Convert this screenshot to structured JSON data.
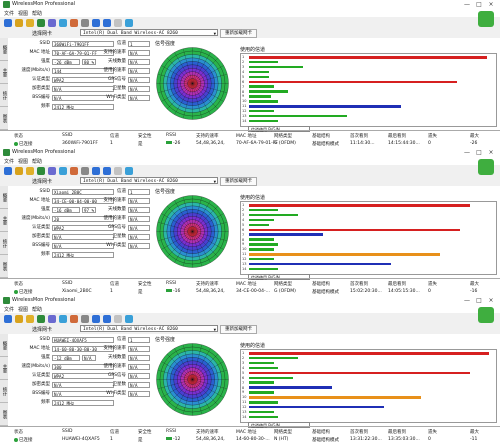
{
  "app": {
    "title": "WirelessMon Professional",
    "menu": [
      "文件",
      "视图",
      "帮助"
    ],
    "controls": [
      "—",
      "□",
      "×"
    ]
  },
  "labels": {
    "adapter": "选择网卡",
    "refresh": "重新加载网卡",
    "ssid": "SSID",
    "channel": "信道",
    "mac": "MAC 地址",
    "rates": "支持的速率",
    "rssi": "强度",
    "antenna": "天线数量",
    "speed": "速度(Mbits/s)",
    "data_rate": "使用的速率",
    "auth": "认证类型",
    "gps": "GPS信号",
    "cipher": "加密类型",
    "satellite": "卫星数",
    "network": "BSS编号",
    "wifi_type": "Wi-Fi类型",
    "frequency": "频率",
    "signal_strength": "信号强度",
    "channel_usage": "使用的信道",
    "usage_option": "信道使用 B/G/N"
  },
  "sidetabs": [
    "概要",
    "主要",
    "统计",
    "图表"
  ],
  "table_headers": [
    "状态",
    "SSID",
    "信道",
    "安全性",
    "RSSI",
    "支持的速率",
    "MAC 地址",
    "网络类型",
    "基础结构",
    "首次看到",
    "最后看到",
    "遗失",
    "最大"
  ],
  "windows": [
    {
      "adapter": "Intel(R) Dual Band Wireless-AC 8260",
      "ssid": "360WiFi-7901FF",
      "channel": "1",
      "mac": "70-AF-6A-79-01-FF",
      "rates": "N/A",
      "rssi": "-26 dBm",
      "rssi_pct": "80 %",
      "antenna": "N/A",
      "speed": "144",
      "data_rate": "N/A",
      "auth": "WPA2",
      "gps": "N/A",
      "cipher": "N/A",
      "satellite": "N/A",
      "network": "N/A",
      "wifi_type": "N/A",
      "frequency": "2412 MHz",
      "row": {
        "status": "已连接",
        "ssid": "360WiFi-7901FF",
        "channel": "1",
        "security": "是",
        "rssi": "-26",
        "rates": "54,48,36,24,",
        "mac": "70-AF-6A-79-01-FF",
        "net_type": "G (OFDM)",
        "infra": "基础结构模式",
        "first": "11:14:30...",
        "last": "14:15:44:30...",
        "lost": "0",
        "max": "-26"
      },
      "bars": [
        {
          "ch": "1",
          "w": 0.97,
          "color": "#d62020"
        },
        {
          "ch": "2",
          "w": 0.12,
          "color": "#22aa22"
        },
        {
          "ch": "3",
          "w": 0.22,
          "color": "#22aa22"
        },
        {
          "ch": "4",
          "w": 0.08,
          "color": "#22aa22"
        },
        {
          "ch": "5",
          "w": 0.08,
          "color": "#22aa22"
        },
        {
          "ch": "6",
          "w": 0.85,
          "color": "#d62020"
        },
        {
          "ch": "7",
          "w": 0.1,
          "color": "#22aa22"
        },
        {
          "ch": "8",
          "w": 0.16,
          "color": "#22aa22"
        },
        {
          "ch": "9",
          "w": 0.09,
          "color": "#22aa22"
        },
        {
          "ch": "10",
          "w": 0.12,
          "color": "#22aa22"
        },
        {
          "ch": "11",
          "w": 0.62,
          "color": "#1f2fb5"
        },
        {
          "ch": "12",
          "w": 0.1,
          "color": "#22aa22"
        },
        {
          "ch": "13",
          "w": 0.4,
          "color": "#22aa22"
        },
        {
          "ch": "14",
          "w": 0.12,
          "color": "#22aa22"
        }
      ]
    },
    {
      "adapter": "Intel(R) Dual Band Wireless-AC 8260",
      "ssid": "Xiaomi_2B0C",
      "channel": "1",
      "mac": "34-CE-00-04-00-00",
      "rates": "N/A",
      "rssi": "-16 dBm",
      "rssi_pct": "97 %",
      "antenna": "N/A",
      "speed": "20",
      "data_rate": "N/A",
      "auth": "WPA2",
      "gps": "N/A",
      "cipher": "N/A",
      "satellite": "N/A",
      "network": "N/A",
      "wifi_type": "N/A",
      "frequency": "2412 MHz",
      "row": {
        "status": "已连接",
        "ssid": "Xiaomi_2B0C",
        "channel": "1",
        "security": "是",
        "rssi": "-16",
        "rates": "54,48,36,24,",
        "mac": "34-CE-00-04-...",
        "net_type": "G (OFDM)",
        "infra": "基础结构模式",
        "first": "15:02:20:30...",
        "last": "14:05:15:30...",
        "lost": "0",
        "max": "-16"
      },
      "bars": [
        {
          "ch": "1",
          "w": 0.9,
          "color": "#d62020"
        },
        {
          "ch": "2",
          "w": 0.12,
          "color": "#22aa22"
        },
        {
          "ch": "3",
          "w": 0.2,
          "color": "#22aa22"
        },
        {
          "ch": "4",
          "w": 0.1,
          "color": "#22aa22"
        },
        {
          "ch": "5",
          "w": 0.08,
          "color": "#22aa22"
        },
        {
          "ch": "6",
          "w": 0.86,
          "color": "#d62020"
        },
        {
          "ch": "7",
          "w": 0.3,
          "color": "#1f2fb5"
        },
        {
          "ch": "8",
          "w": 0.1,
          "color": "#22aa22"
        },
        {
          "ch": "9",
          "w": 0.12,
          "color": "#22aa22"
        },
        {
          "ch": "10",
          "w": 0.1,
          "color": "#22aa22"
        },
        {
          "ch": "11",
          "w": 0.78,
          "color": "#e8901a"
        },
        {
          "ch": "12",
          "w": 0.1,
          "color": "#22aa22"
        },
        {
          "ch": "13",
          "w": 0.58,
          "color": "#1f2fb5"
        },
        {
          "ch": "14",
          "w": 0.12,
          "color": "#22aa22"
        }
      ]
    },
    {
      "adapter": "Intel(R) Dual Band Wireless-AC 8260",
      "ssid": "HUAWEI-4QXAF5",
      "channel": "1",
      "mac": "14-60-80-30-B0-30",
      "rates": "N/A",
      "rssi": "-12 dBm",
      "rssi_pct": "N/A",
      "antenna": "N/A",
      "speed": "300",
      "data_rate": "N/A",
      "auth": "WPA2",
      "gps": "N/A",
      "cipher": "N/A",
      "satellite": "N/A",
      "network": "N/A",
      "wifi_type": "N/A",
      "frequency": "2412 MHz",
      "row": {
        "status": "已连接",
        "ssid": "HUAWEI-4QXAF5",
        "channel": "1",
        "security": "是",
        "rssi": "-12",
        "rates": "54,48,36,24,",
        "mac": "14-60-80-30-...",
        "net_type": "N (HT)",
        "infra": "基础结构模式",
        "first": "13:31:22:30...",
        "last": "13:35:03:30...",
        "lost": "0",
        "max": "-11"
      },
      "bars": [
        {
          "ch": "1",
          "w": 0.98,
          "color": "#d62020"
        },
        {
          "ch": "2",
          "w": 0.2,
          "color": "#22aa22"
        },
        {
          "ch": "3",
          "w": 0.1,
          "color": "#22aa22"
        },
        {
          "ch": "4",
          "w": 0.12,
          "color": "#22aa22"
        },
        {
          "ch": "5",
          "w": 0.9,
          "color": "#d62020"
        },
        {
          "ch": "6",
          "w": 0.18,
          "color": "#22aa22"
        },
        {
          "ch": "7",
          "w": 0.1,
          "color": "#22aa22"
        },
        {
          "ch": "8",
          "w": 0.34,
          "color": "#1f2fb5"
        },
        {
          "ch": "9",
          "w": 0.1,
          "color": "#22aa22"
        },
        {
          "ch": "10",
          "w": 0.7,
          "color": "#e8901a"
        },
        {
          "ch": "11",
          "w": 0.12,
          "color": "#22aa22"
        },
        {
          "ch": "12",
          "w": 0.55,
          "color": "#1f2fb5"
        },
        {
          "ch": "13",
          "w": 0.1,
          "color": "#22aa22"
        },
        {
          "ch": "14",
          "w": 0.12,
          "color": "#22aa22"
        }
      ]
    }
  ]
}
